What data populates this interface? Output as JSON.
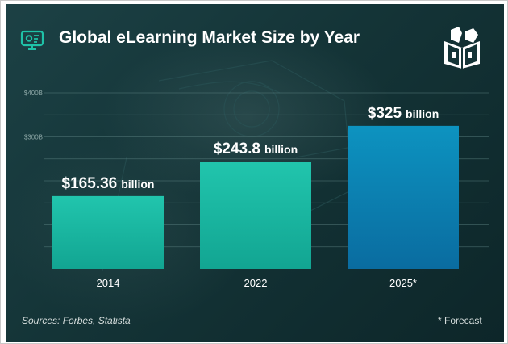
{
  "header": {
    "title": "Global eLearning Market Size by Year",
    "logo_icon": "monitor-chart-icon",
    "brand_icon": "open-book-building-icon"
  },
  "chart_data": {
    "type": "bar",
    "title": "Global eLearning Market Size by Year",
    "categories": [
      "2014",
      "2022",
      "2025*"
    ],
    "values": [
      165.36,
      243.8,
      325
    ],
    "value_labels": [
      {
        "main": "$165.36",
        "unit": "billion"
      },
      {
        "main": "$243.8",
        "unit": "billion"
      },
      {
        "main": "$325",
        "unit": "billion"
      }
    ],
    "y_ticks": [
      {
        "value": 400,
        "label": "$400B"
      },
      {
        "value": 300,
        "label": "$300B"
      }
    ],
    "ylim": [
      0,
      400
    ],
    "grid": true,
    "xlabel": "",
    "ylabel": ""
  },
  "footer": {
    "sources": "Sources: Forbes, Statista",
    "forecast_note": "* Forecast"
  },
  "colors": {
    "bar_actual_top": "#21c5ad",
    "bar_actual_bottom": "#12a592",
    "bar_forecast_top": "#0d93c0",
    "bar_forecast_bottom": "#0a6ca0",
    "grid": "#5e8383",
    "text": "#ffffff",
    "muted_text": "#d6dedd"
  }
}
